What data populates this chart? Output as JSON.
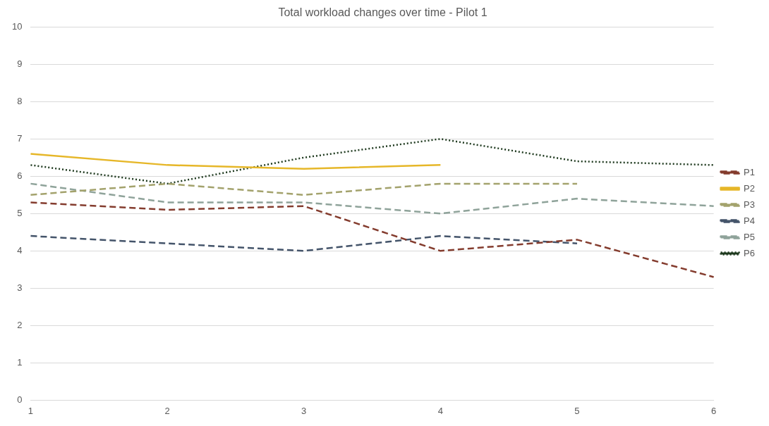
{
  "chart_data": {
    "type": "line",
    "title": "Total workload changes over time - Pilot 1",
    "categories": [
      "1",
      "2",
      "3",
      "4",
      "5",
      "6"
    ],
    "ylim": [
      0,
      10
    ],
    "yticks": [
      0,
      1,
      2,
      3,
      4,
      5,
      6,
      7,
      8,
      9,
      10
    ],
    "grid": "y",
    "legend": "right",
    "marker": "none",
    "series": [
      {
        "name": "P1",
        "color": "#843c2e",
        "line_style": "dashed",
        "values": [
          5.3,
          5.1,
          5.2,
          4.0,
          4.3,
          3.3
        ]
      },
      {
        "name": "P2",
        "color": "#e6b729",
        "line_style": "solid",
        "values": [
          6.6,
          6.3,
          6.2,
          6.3,
          null,
          null
        ]
      },
      {
        "name": "P3",
        "color": "#a3a26c",
        "line_style": "dashed",
        "values": [
          5.5,
          5.8,
          5.5,
          5.8,
          5.8,
          null
        ]
      },
      {
        "name": "P4",
        "color": "#44546a",
        "line_style": "dashed",
        "values": [
          4.4,
          4.2,
          4.0,
          4.4,
          4.2,
          null
        ]
      },
      {
        "name": "P5",
        "color": "#8fa39a",
        "line_style": "dashed",
        "values": [
          5.8,
          5.3,
          5.3,
          5.0,
          5.4,
          5.2
        ]
      },
      {
        "name": "P6",
        "color": "#1f3a1f",
        "line_style": "dotted",
        "values": [
          6.3,
          5.8,
          6.5,
          7.0,
          6.4,
          6.3
        ]
      }
    ]
  }
}
